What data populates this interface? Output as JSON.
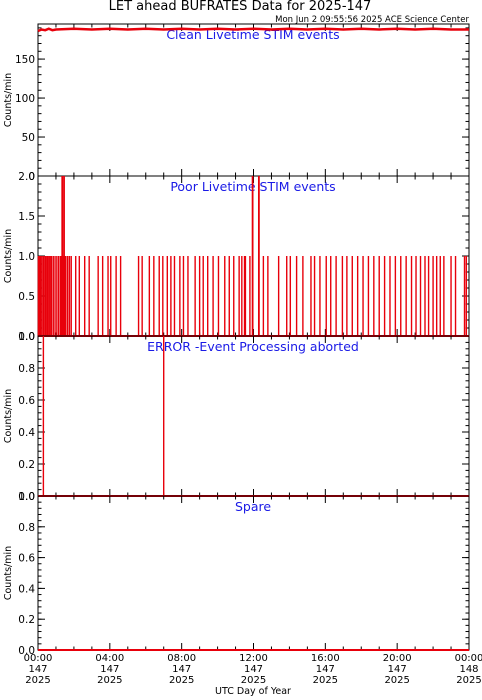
{
  "title": "LET ahead BUFRATES Data for 2025-147",
  "timestamp": "Mon Jun  2 09:55:56 2025 ACE Science Center",
  "xlabel": "UTC Day of Year",
  "ylabel": "Counts/min",
  "x_ticks": [
    {
      "hour": 0,
      "time": "00:00",
      "day": "147",
      "year": "2025"
    },
    {
      "hour": 4,
      "time": "04:00",
      "day": "147",
      "year": "2025"
    },
    {
      "hour": 8,
      "time": "08:00",
      "day": "147",
      "year": "2025"
    },
    {
      "hour": 12,
      "time": "12:00",
      "day": "147",
      "year": "2025"
    },
    {
      "hour": 16,
      "time": "16:00",
      "day": "147",
      "year": "2025"
    },
    {
      "hour": 20,
      "time": "20:00",
      "day": "147",
      "year": "2025"
    },
    {
      "hour": 24,
      "time": "00:00",
      "day": "148",
      "year": "2025"
    }
  ],
  "colors": {
    "data": "#e8000b",
    "panel_title": "#1a1ae6",
    "axes": "#000000"
  },
  "chart_data": [
    {
      "type": "line",
      "title": "Clean Livetime STIM events",
      "ylim": [
        0,
        195
      ],
      "yticks": [
        0,
        50,
        100,
        150
      ],
      "x_units": "hours since 2025-147 00:00",
      "x_range": [
        0,
        24
      ],
      "series": [
        {
          "x": [
            0.0,
            0.2,
            0.4,
            0.6,
            0.8,
            1.0,
            2.0,
            3.0,
            4.0,
            5.0,
            6.0,
            7.0,
            8.0,
            9.0,
            10.0,
            11.0,
            12.0,
            13.0,
            14.0,
            15.0,
            16.0,
            17.0,
            18.0,
            19.0,
            20.0,
            21.0,
            22.0,
            23.0,
            24.0
          ],
          "values": [
            186,
            188,
            187,
            189,
            187,
            188,
            189,
            188,
            189,
            188,
            189,
            188,
            189,
            188,
            189,
            188,
            189,
            188,
            189,
            188,
            189,
            188,
            189,
            188,
            189,
            188,
            189,
            188,
            188
          ]
        }
      ]
    },
    {
      "type": "line",
      "title": "Poor Livetime STIM events",
      "ylim": [
        0,
        2
      ],
      "yticks": [
        0.0,
        0.5,
        1.0,
        1.5,
        2.0
      ],
      "x_units": "hours since 2025-147 00:00",
      "x_range": [
        0,
        24
      ],
      "spike_value": 1,
      "spikes": [
        0.02,
        0.08,
        0.15,
        0.22,
        0.3,
        0.38,
        0.45,
        0.52,
        0.6,
        0.68,
        0.75,
        0.85,
        0.95,
        1.05,
        1.15,
        1.25,
        1.3,
        1.4,
        1.5,
        1.55,
        1.65,
        1.75,
        1.85,
        2.1,
        2.3,
        2.6,
        2.85,
        3.35,
        3.6,
        3.9,
        4.05,
        4.35,
        4.6,
        5.6,
        5.8,
        6.2,
        6.45,
        6.75,
        6.95,
        7.2,
        7.4,
        7.6,
        7.9,
        8.1,
        8.35,
        8.75,
        9.0,
        9.2,
        9.45,
        9.75,
        10.05,
        10.4,
        10.65,
        10.9,
        11.2,
        11.35,
        11.5,
        11.55,
        11.8,
        12.55,
        12.8,
        13.4,
        13.85,
        14.05,
        14.4,
        14.75,
        15.2,
        15.4,
        15.7,
        16.05,
        16.3,
        16.6,
        16.95,
        17.2,
        17.5,
        17.8,
        18.1,
        18.4,
        18.7,
        19.0,
        19.3,
        19.6,
        19.9,
        20.2,
        20.5,
        20.8,
        21.05,
        21.3,
        21.55,
        21.75,
        22.0,
        22.2,
        22.4,
        22.6,
        23.0,
        23.25,
        23.75,
        23.85
      ],
      "peaks": [
        {
          "x": 1.35,
          "value": 2
        },
        {
          "x": 1.45,
          "value": 2
        },
        {
          "x": 11.95,
          "value": 2
        },
        {
          "x": 12.3,
          "value": 2
        }
      ]
    },
    {
      "type": "line",
      "title": "ERROR -Event Processing aborted",
      "ylim": [
        0,
        1
      ],
      "yticks": [
        0.0,
        0.2,
        0.4,
        0.6,
        0.8,
        1.0
      ],
      "x_units": "hours since 2025-147 00:00",
      "x_range": [
        0,
        24
      ],
      "spike_value": 1,
      "spikes": [
        0.3,
        7.0
      ],
      "peaks": []
    },
    {
      "type": "line",
      "title": "Spare",
      "ylim": [
        0,
        1
      ],
      "yticks": [
        0.0,
        0.2,
        0.4,
        0.6,
        0.8,
        1.0
      ],
      "x_units": "hours since 2025-147 00:00",
      "x_range": [
        0,
        24
      ],
      "spike_value": 1,
      "spikes": [],
      "peaks": []
    }
  ]
}
